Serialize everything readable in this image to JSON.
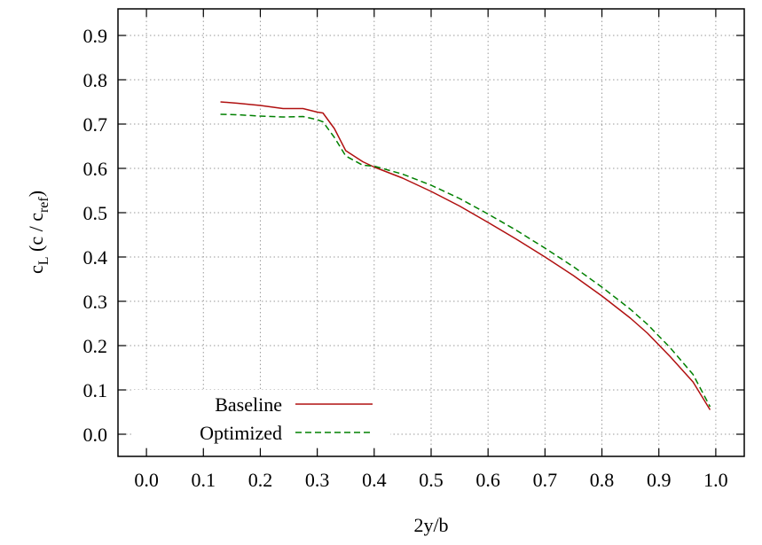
{
  "chart_data": {
    "type": "line",
    "title": "",
    "xlabel": "2y/b",
    "ylabel_parts": {
      "main": "c",
      "sub1": "L",
      "mid": " (c / c",
      "sub2": "ref",
      "end": ")"
    },
    "xlim": [
      -0.05,
      1.05
    ],
    "ylim": [
      -0.05,
      0.96
    ],
    "xticks": [
      0.0,
      0.1,
      0.2,
      0.3,
      0.4,
      0.5,
      0.6,
      0.7,
      0.8,
      0.9,
      1.0
    ],
    "yticks": [
      0.0,
      0.1,
      0.2,
      0.3,
      0.4,
      0.5,
      0.6,
      0.7,
      0.8,
      0.9
    ],
    "grid": true,
    "legend_position": "bottom-left",
    "series": [
      {
        "name": "Baseline",
        "color": "#b01010",
        "dash": "solid",
        "x": [
          0.13,
          0.16,
          0.2,
          0.24,
          0.275,
          0.3,
          0.31,
          0.33,
          0.35,
          0.38,
          0.4,
          0.45,
          0.5,
          0.55,
          0.6,
          0.65,
          0.7,
          0.75,
          0.8,
          0.85,
          0.88,
          0.92,
          0.96,
          0.99
        ],
        "y": [
          0.75,
          0.747,
          0.742,
          0.735,
          0.735,
          0.727,
          0.725,
          0.69,
          0.64,
          0.615,
          0.603,
          0.578,
          0.548,
          0.515,
          0.478,
          0.44,
          0.4,
          0.358,
          0.312,
          0.262,
          0.228,
          0.175,
          0.118,
          0.055
        ]
      },
      {
        "name": "Optimized",
        "color": "#008000",
        "dash": "dashed",
        "x": [
          0.13,
          0.16,
          0.2,
          0.24,
          0.275,
          0.3,
          0.31,
          0.33,
          0.35,
          0.38,
          0.4,
          0.45,
          0.5,
          0.55,
          0.6,
          0.65,
          0.7,
          0.75,
          0.8,
          0.85,
          0.88,
          0.92,
          0.96,
          0.99
        ],
        "y": [
          0.722,
          0.721,
          0.718,
          0.716,
          0.717,
          0.71,
          0.705,
          0.67,
          0.628,
          0.607,
          0.605,
          0.587,
          0.562,
          0.532,
          0.497,
          0.46,
          0.42,
          0.378,
          0.332,
          0.282,
          0.248,
          0.195,
          0.135,
          0.062
        ]
      }
    ]
  }
}
